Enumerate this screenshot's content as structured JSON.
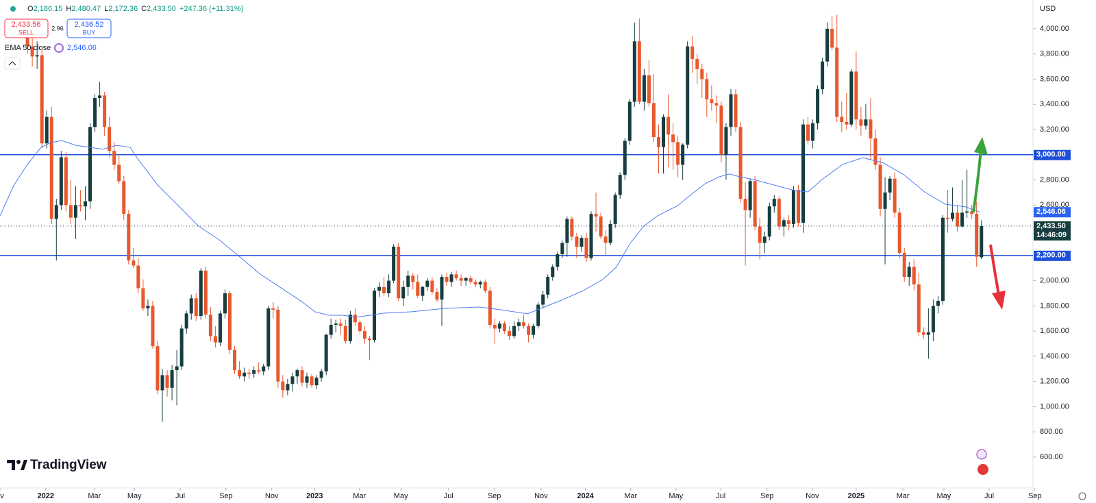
{
  "chart_data": {
    "type": "candlestick",
    "currency": "USD",
    "legend": [
      {
        "key": "O",
        "value": "2,186.15"
      },
      {
        "key": "H",
        "value": "2,480.47"
      },
      {
        "key": "L",
        "value": "2,172.36"
      },
      {
        "key": "C",
        "value": "2,433.50"
      }
    ],
    "change": "+247.36 (+11.31%)",
    "sell": {
      "price": "2,433.56",
      "label": "SELL"
    },
    "spread": "2.96",
    "buy": {
      "price": "2,436.52",
      "label": "BUY"
    },
    "brand": "TradingView",
    "up_color": "#163d40",
    "down_color": "#e8582d",
    "xlim": [
      -5.7,
      208.7
    ],
    "ylim": [
      355,
      4228
    ],
    "xticks": [
      {
        "value": -5.7,
        "label": "ov"
      },
      {
        "value": 3.8,
        "label": "2022"
      },
      {
        "value": 13.9,
        "label": "Mar"
      },
      {
        "value": 22.2,
        "label": "May"
      },
      {
        "value": 31.7,
        "label": "Jul"
      },
      {
        "value": 41.2,
        "label": "Sep"
      },
      {
        "value": 50.7,
        "label": "Nov"
      },
      {
        "value": 59.6,
        "label": "2023"
      },
      {
        "value": 68.9,
        "label": "Mar"
      },
      {
        "value": 77.5,
        "label": "May"
      },
      {
        "value": 87.4,
        "label": "Jul"
      },
      {
        "value": 96.9,
        "label": "Sep"
      },
      {
        "value": 106.6,
        "label": "Nov"
      },
      {
        "value": 115.8,
        "label": "2024"
      },
      {
        "value": 125.2,
        "label": "Mar"
      },
      {
        "value": 134.6,
        "label": "May"
      },
      {
        "value": 143.9,
        "label": "Jul"
      },
      {
        "value": 153.5,
        "label": "Sep"
      },
      {
        "value": 162.9,
        "label": "Nov"
      },
      {
        "value": 172,
        "label": "2025"
      },
      {
        "value": 181.7,
        "label": "Mar"
      },
      {
        "value": 190.2,
        "label": "May"
      },
      {
        "value": 199.6,
        "label": "Jul"
      },
      {
        "value": 209.1,
        "label": "Sep"
      }
    ],
    "yticks": [
      {
        "value": 4000,
        "label": "4,000.00"
      },
      {
        "value": 3800,
        "label": "3,800.00"
      },
      {
        "value": 3600,
        "label": "3,600.00"
      },
      {
        "value": 3400,
        "label": "3,400.00"
      },
      {
        "value": 3200,
        "label": "3,200.00"
      },
      {
        "value": 3000,
        "label": "3,000.00"
      },
      {
        "value": 2800,
        "label": "2,800.00"
      },
      {
        "value": 2600,
        "label": "2,600.00"
      },
      {
        "value": 2000,
        "label": "2,000.00"
      },
      {
        "value": 1800,
        "label": "1,800.00"
      },
      {
        "value": 1600,
        "label": "1,600.00"
      },
      {
        "value": 1400,
        "label": "1,400.00"
      },
      {
        "value": 1200,
        "label": "1,200.00"
      },
      {
        "value": 1000,
        "label": "1,000.00"
      },
      {
        "value": 800,
        "label": "800.00"
      },
      {
        "value": 600,
        "label": "600.00"
      }
    ],
    "grid": false,
    "hlines": [
      {
        "value": 3000,
        "label": "3,000.00",
        "color": "#1e4fd8"
      },
      {
        "value": 2200,
        "label": "2,200.00",
        "color": "#1e4fd8"
      }
    ],
    "last_price": {
      "value": 2433.5,
      "label": "2,433.50",
      "countdown": "14:46:09"
    },
    "ema": {
      "name": "EMA 50 close",
      "color": "#4f7cf5",
      "last_label": "2,546.06",
      "x": [
        -5.7,
        -2.8,
        0,
        2.8,
        5.0,
        7.1,
        10.0,
        12.8,
        15.6,
        18.5,
        21.3,
        22.7,
        27.0,
        31.3,
        35.5,
        39.8,
        44.1,
        48.3,
        52.6,
        56.9,
        59.7,
        62.5,
        65.4,
        68.2,
        71.1,
        73.9,
        79.6,
        86.7,
        93.8,
        98.1,
        103.8,
        106.6,
        110.9,
        115.1,
        119.4,
        122.2,
        125.1,
        127.9,
        130.8,
        135.0,
        137.9,
        140.7,
        143.6,
        145.7,
        147.8,
        150.7,
        154.9,
        159.2,
        162.0,
        164.9,
        169.2,
        173.4,
        177.7,
        181.9,
        186.2,
        190.5,
        194.7,
        197.6
      ],
      "values": [
        2515,
        2760,
        2923,
        3059,
        3097,
        3113,
        3075,
        3059,
        3043,
        3075,
        3059,
        2977,
        2760,
        2596,
        2433,
        2324,
        2188,
        2052,
        1944,
        1835,
        1753,
        1726,
        1726,
        1710,
        1726,
        1742,
        1753,
        1780,
        1791,
        1770,
        1737,
        1780,
        1846,
        1916,
        2009,
        2107,
        2297,
        2433,
        2515,
        2596,
        2689,
        2771,
        2825,
        2847,
        2825,
        2803,
        2760,
        2716,
        2705,
        2803,
        2923,
        2977,
        2934,
        2841,
        2705,
        2607,
        2586,
        2546.06
      ]
    },
    "candles": [
      [
        4010,
        4080,
        3800,
        3860
      ],
      [
        3860,
        3950,
        3700,
        3780
      ],
      [
        3780,
        3900,
        3680,
        3790
      ],
      [
        3790,
        3830,
        3050,
        3090
      ],
      [
        3090,
        3350,
        3050,
        3300
      ],
      [
        3300,
        3380,
        2450,
        2490
      ],
      [
        2490,
        2650,
        2160,
        2600
      ],
      [
        2600,
        3030,
        2560,
        2980
      ],
      [
        2980,
        3020,
        2550,
        2600
      ],
      [
        2600,
        2800,
        2450,
        2500
      ],
      [
        2500,
        2750,
        2330,
        2600
      ],
      [
        2600,
        2720,
        2550,
        2590
      ],
      [
        2590,
        2750,
        2480,
        2630
      ],
      [
        2630,
        3250,
        2570,
        3220
      ],
      [
        3220,
        3480,
        3180,
        3450
      ],
      [
        3450,
        3580,
        3380,
        3470
      ],
      [
        3470,
        3500,
        3150,
        3220
      ],
      [
        3220,
        3300,
        2980,
        3030
      ],
      [
        3030,
        3100,
        2880,
        2920
      ],
      [
        2920,
        2990,
        2770,
        2790
      ],
      [
        2790,
        2830,
        2480,
        2530
      ],
      [
        2530,
        2560,
        2130,
        2160
      ],
      [
        2160,
        2260,
        2100,
        2120
      ],
      [
        2120,
        2180,
        1900,
        1940
      ],
      [
        1940,
        2010,
        1760,
        1780
      ],
      [
        1780,
        1850,
        1720,
        1800
      ],
      [
        1800,
        1840,
        1460,
        1480
      ],
      [
        1480,
        1520,
        1100,
        1130
      ],
      [
        1130,
        1300,
        880,
        1250
      ],
      [
        1250,
        1290,
        1080,
        1150
      ],
      [
        1150,
        1330,
        1050,
        1290
      ],
      [
        1290,
        1450,
        1010,
        1320
      ],
      [
        1320,
        1650,
        1290,
        1620
      ],
      [
        1620,
        1760,
        1580,
        1740
      ],
      [
        1740,
        1890,
        1690,
        1860
      ],
      [
        1860,
        1900,
        1680,
        1720
      ],
      [
        1720,
        2100,
        1690,
        2080
      ],
      [
        2080,
        2110,
        1700,
        1730
      ],
      [
        1730,
        1790,
        1520,
        1560
      ],
      [
        1560,
        1640,
        1470,
        1510
      ],
      [
        1510,
        1760,
        1480,
        1740
      ],
      [
        1740,
        1930,
        1700,
        1900
      ],
      [
        1900,
        1920,
        1420,
        1450
      ],
      [
        1450,
        1480,
        1260,
        1290
      ],
      [
        1290,
        1360,
        1220,
        1240
      ],
      [
        1240,
        1310,
        1200,
        1270
      ],
      [
        1270,
        1300,
        1220,
        1260
      ],
      [
        1260,
        1320,
        1230,
        1290
      ],
      [
        1290,
        1350,
        1260,
        1280
      ],
      [
        1280,
        1340,
        1250,
        1320
      ],
      [
        1320,
        1800,
        1290,
        1780
      ],
      [
        1780,
        1830,
        1700,
        1770
      ],
      [
        1770,
        1800,
        1150,
        1200
      ],
      [
        1200,
        1250,
        1070,
        1130
      ],
      [
        1130,
        1220,
        1090,
        1180
      ],
      [
        1180,
        1270,
        1120,
        1240
      ],
      [
        1240,
        1300,
        1180,
        1290
      ],
      [
        1290,
        1320,
        1160,
        1190
      ],
      [
        1190,
        1270,
        1150,
        1240
      ],
      [
        1240,
        1260,
        1150,
        1170
      ],
      [
        1170,
        1250,
        1140,
        1230
      ],
      [
        1230,
        1300,
        1200,
        1280
      ],
      [
        1280,
        1580,
        1250,
        1570
      ],
      [
        1570,
        1700,
        1540,
        1650
      ],
      [
        1650,
        1690,
        1590,
        1660
      ],
      [
        1660,
        1700,
        1570,
        1640
      ],
      [
        1640,
        1690,
        1500,
        1520
      ],
      [
        1520,
        1760,
        1500,
        1730
      ],
      [
        1730,
        1780,
        1640,
        1670
      ],
      [
        1670,
        1690,
        1580,
        1600
      ],
      [
        1600,
        1640,
        1500,
        1540
      ],
      [
        1540,
        1560,
        1370,
        1530
      ],
      [
        1530,
        1940,
        1510,
        1920
      ],
      [
        1920,
        1990,
        1870,
        1950
      ],
      [
        1950,
        2030,
        1880,
        1900
      ],
      [
        1900,
        2050,
        1870,
        2000
      ],
      [
        2000,
        2290,
        1980,
        2270
      ],
      [
        2270,
        2300,
        1840,
        1860
      ],
      [
        1860,
        2000,
        1800,
        1950
      ],
      [
        1950,
        2080,
        1880,
        2040
      ],
      [
        2040,
        2060,
        1930,
        1990
      ],
      [
        1990,
        2050,
        1860,
        1880
      ],
      [
        1880,
        1960,
        1840,
        1950
      ],
      [
        1950,
        2020,
        1920,
        2000
      ],
      [
        2000,
        2030,
        1890,
        1910
      ],
      [
        1910,
        1940,
        1830,
        1850
      ],
      [
        1850,
        2050,
        1640,
        2030
      ],
      [
        2030,
        2060,
        1960,
        1990
      ],
      [
        1990,
        2070,
        1950,
        2050
      ],
      [
        2050,
        2080,
        2000,
        2020
      ],
      [
        2020,
        2050,
        1960,
        2000
      ],
      [
        2000,
        2030,
        1960,
        2020
      ],
      [
        2020,
        2040,
        1970,
        1990
      ],
      [
        1990,
        2010,
        1950,
        1970
      ],
      [
        1970,
        2000,
        1940,
        1990
      ],
      [
        1990,
        2010,
        1900,
        1920
      ],
      [
        1920,
        1950,
        1620,
        1650
      ],
      [
        1650,
        1700,
        1500,
        1620
      ],
      [
        1620,
        1680,
        1590,
        1660
      ],
      [
        1660,
        1680,
        1580,
        1600
      ],
      [
        1600,
        1640,
        1530,
        1560
      ],
      [
        1560,
        1680,
        1540,
        1640
      ],
      [
        1640,
        1700,
        1600,
        1670
      ],
      [
        1670,
        1730,
        1620,
        1640
      ],
      [
        1640,
        1660,
        1510,
        1570
      ],
      [
        1570,
        1660,
        1540,
        1640
      ],
      [
        1640,
        1830,
        1620,
        1810
      ],
      [
        1810,
        1920,
        1780,
        1890
      ],
      [
        1890,
        2050,
        1860,
        2030
      ],
      [
        2030,
        2130,
        2000,
        2110
      ],
      [
        2110,
        2230,
        2080,
        2210
      ],
      [
        2210,
        2320,
        2180,
        2300
      ],
      [
        2300,
        2510,
        2190,
        2490
      ],
      [
        2490,
        2510,
        2320,
        2350
      ],
      [
        2350,
        2380,
        2180,
        2270
      ],
      [
        2270,
        2360,
        2230,
        2340
      ],
      [
        2340,
        2380,
        2150,
        2180
      ],
      [
        2180,
        2550,
        2160,
        2530
      ],
      [
        2530,
        2700,
        2390,
        2510
      ],
      [
        2510,
        2540,
        2330,
        2350
      ],
      [
        2350,
        2400,
        2200,
        2300
      ],
      [
        2300,
        2480,
        2280,
        2450
      ],
      [
        2450,
        2700,
        2420,
        2680
      ],
      [
        2680,
        2860,
        2650,
        2840
      ],
      [
        2840,
        3130,
        2800,
        3110
      ],
      [
        3110,
        3440,
        3080,
        3420
      ],
      [
        3420,
        4050,
        3380,
        3900
      ],
      [
        3900,
        4080,
        3400,
        3420
      ],
      [
        3420,
        3680,
        3350,
        3630
      ],
      [
        3630,
        3750,
        3380,
        3410
      ],
      [
        3410,
        3640,
        3100,
        3140
      ],
      [
        3140,
        3240,
        2850,
        3060
      ],
      [
        3060,
        3320,
        2850,
        3300
      ],
      [
        3300,
        3480,
        2900,
        3160
      ],
      [
        3160,
        3250,
        2880,
        3100
      ],
      [
        3100,
        3150,
        2820,
        2920
      ],
      [
        2920,
        3090,
        2800,
        3080
      ],
      [
        3080,
        3900,
        3050,
        3860
      ],
      [
        3860,
        3940,
        3650,
        3760
      ],
      [
        3760,
        3800,
        3560,
        3680
      ],
      [
        3680,
        3720,
        3450,
        3600
      ],
      [
        3600,
        3650,
        3300,
        3440
      ],
      [
        3440,
        3550,
        3350,
        3410
      ],
      [
        3410,
        3470,
        3250,
        3390
      ],
      [
        3390,
        3420,
        2940,
        3000
      ],
      [
        3000,
        3250,
        2800,
        3220
      ],
      [
        3220,
        3520,
        3150,
        3480
      ],
      [
        3480,
        3520,
        3180,
        3220
      ],
      [
        3220,
        3260,
        2620,
        2650
      ],
      [
        2650,
        2780,
        2120,
        2560
      ],
      [
        2560,
        2810,
        2500,
        2790
      ],
      [
        2790,
        2830,
        2400,
        2430
      ],
      [
        2430,
        2500,
        2170,
        2300
      ],
      [
        2300,
        2390,
        2220,
        2350
      ],
      [
        2350,
        2620,
        2320,
        2590
      ],
      [
        2590,
        2680,
        2540,
        2650
      ],
      [
        2650,
        2670,
        2400,
        2430
      ],
      [
        2430,
        2500,
        2350,
        2480
      ],
      [
        2480,
        2520,
        2400,
        2450
      ],
      [
        2450,
        2750,
        2420,
        2720
      ],
      [
        2720,
        2760,
        2430,
        2460
      ],
      [
        2460,
        3280,
        2380,
        3240
      ],
      [
        3240,
        3300,
        3080,
        3110
      ],
      [
        3110,
        3280,
        3050,
        3250
      ],
      [
        3250,
        3550,
        3200,
        3520
      ],
      [
        3520,
        3770,
        3480,
        3740
      ],
      [
        3740,
        4050,
        3700,
        4000
      ],
      [
        4000,
        4100,
        3830,
        3850
      ],
      [
        3850,
        4110,
        3260,
        3300
      ],
      [
        3300,
        3420,
        3180,
        3260
      ],
      [
        3260,
        3490,
        3200,
        3240
      ],
      [
        3240,
        3680,
        3220,
        3660
      ],
      [
        3660,
        3820,
        3200,
        3280
      ],
      [
        3280,
        3380,
        3150,
        3230
      ],
      [
        3230,
        3400,
        3200,
        3280
      ],
      [
        3280,
        3450,
        2960,
        3130
      ],
      [
        3130,
        3200,
        2880,
        2920
      ],
      [
        2920,
        2980,
        2510,
        2570
      ],
      [
        2570,
        2820,
        2130,
        2700
      ],
      [
        2700,
        2830,
        2640,
        2810
      ],
      [
        2810,
        2860,
        2500,
        2540
      ],
      [
        2540,
        2580,
        2180,
        2220
      ],
      [
        2220,
        2260,
        1990,
        2030
      ],
      [
        2030,
        2150,
        1960,
        2110
      ],
      [
        2110,
        2170,
        1920,
        1970
      ],
      [
        1970,
        2060,
        1560,
        1590
      ],
      [
        1590,
        1630,
        1540,
        1570
      ],
      [
        1570,
        1780,
        1380,
        1590
      ],
      [
        1590,
        1850,
        1520,
        1800
      ],
      [
        1800,
        1880,
        1740,
        1840
      ],
      [
        1840,
        2520,
        1810,
        2500
      ],
      [
        2500,
        2720,
        2380,
        2490
      ],
      [
        2490,
        2740,
        2470,
        2540
      ],
      [
        2540,
        2600,
        2390,
        2430
      ],
      [
        2430,
        2800,
        2420,
        2540
      ],
      [
        2540,
        2880,
        2500,
        2550
      ],
      [
        2550,
        2600,
        2490,
        2530
      ],
      [
        2530,
        2630,
        2110,
        2190
      ],
      [
        2186.15,
        2480.47,
        2172.36,
        2433.5
      ]
    ]
  }
}
